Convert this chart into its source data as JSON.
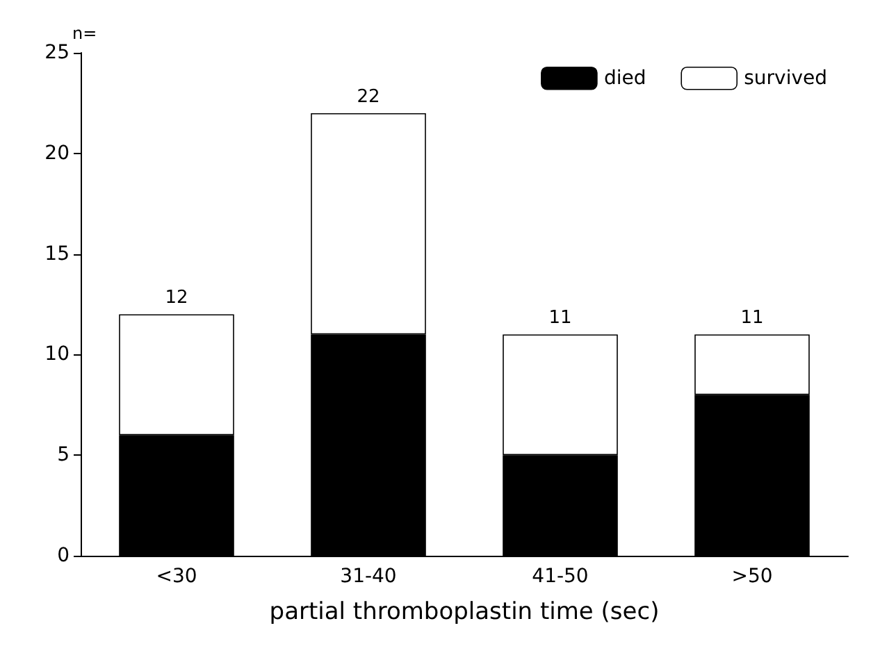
{
  "chart_data": {
    "type": "bar",
    "stacked": true,
    "xlabel": "partial thromboplastin time (sec)",
    "ylabel": "n=",
    "categories": [
      "<30",
      "31-40",
      "41-50",
      ">50"
    ],
    "series": [
      {
        "name": "died",
        "color": "#000000",
        "values": [
          6,
          11,
          5,
          8
        ]
      },
      {
        "name": "survived",
        "color": "#ffffff",
        "values": [
          6,
          11,
          6,
          3
        ]
      }
    ],
    "totals": [
      "12",
      "22",
      "11",
      "11"
    ],
    "ylim": [
      0,
      25
    ],
    "yticks": [
      0,
      5,
      10,
      15,
      20,
      25
    ],
    "grid": false,
    "legend": "top right"
  }
}
